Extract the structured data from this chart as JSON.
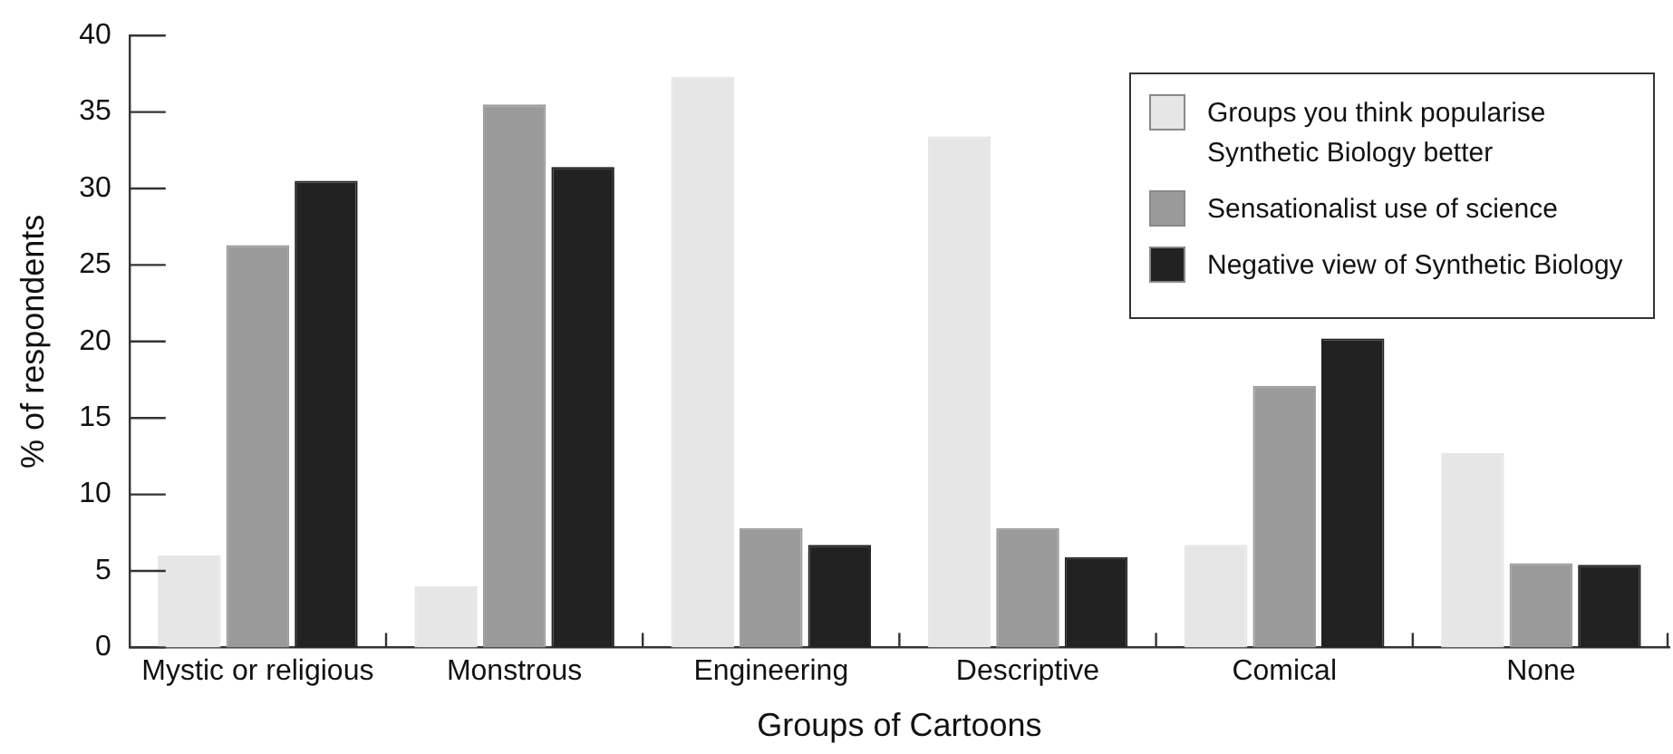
{
  "chart_data": {
    "type": "bar",
    "xlabel": "Groups of Cartoons",
    "ylabel": "% of respondents",
    "categories": [
      "Mystic or religious",
      "Monstrous",
      "Engineering",
      "Descriptive",
      "Comical",
      "None"
    ],
    "series": [
      {
        "name": "Groups you think popularise Synthetic Biology better",
        "color": "#e6e6e6",
        "values": [
          6.0,
          4.0,
          37.3,
          33.4,
          6.7,
          12.7
        ]
      },
      {
        "name": "Sensationalist use of science",
        "color": "#9a9a9a",
        "values": [
          26.3,
          35.5,
          7.8,
          7.8,
          17.1,
          5.5
        ]
      },
      {
        "name": "Negative view of Synthetic Biology",
        "color": "#222222",
        "values": [
          30.5,
          31.4,
          6.7,
          5.9,
          20.2,
          5.4
        ]
      }
    ],
    "ylim": [
      0,
      40
    ],
    "yticks": [
      0,
      5,
      10,
      15,
      20,
      25,
      30,
      35,
      40
    ],
    "grid": false,
    "legend": "top right"
  }
}
